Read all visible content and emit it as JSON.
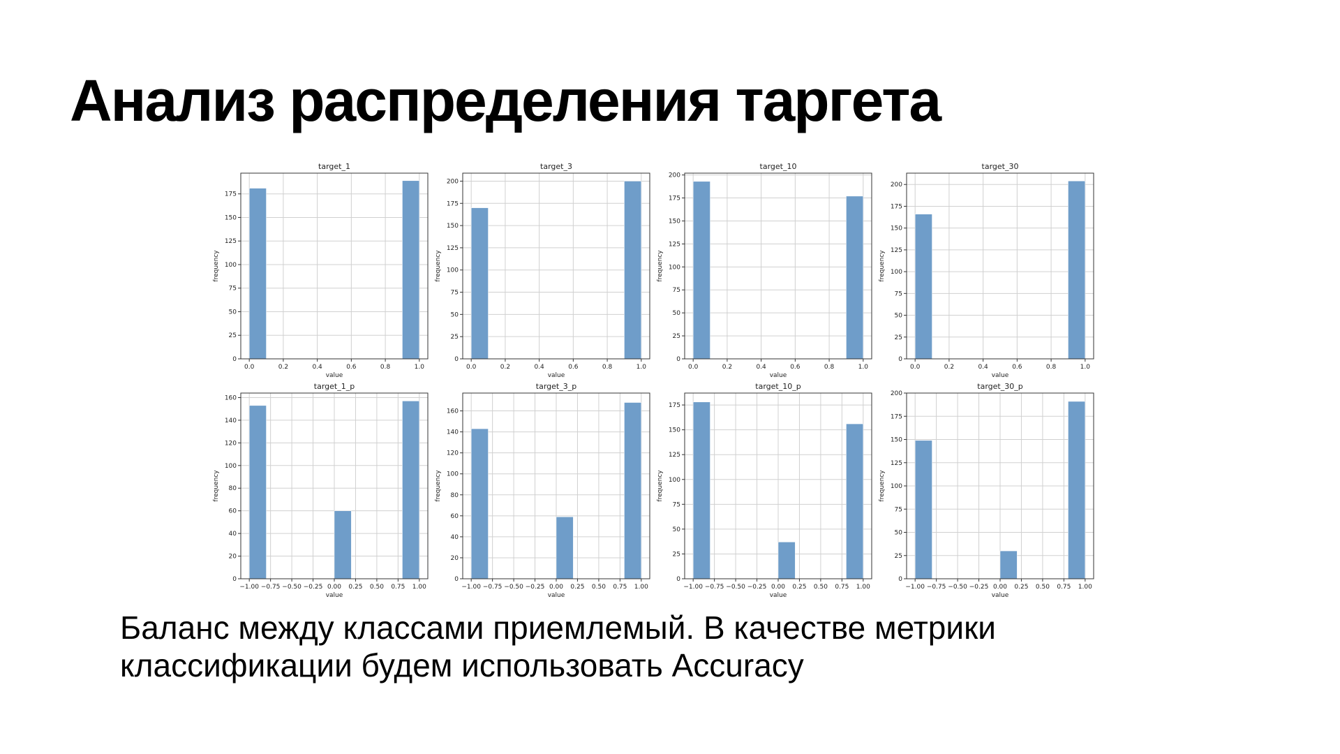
{
  "slide": {
    "title": "Анализ распределения таргета",
    "caption_lines": [
      "Баланс между классами приемлемый. В качестве метрики",
      "классификации будем использовать Accuracy"
    ]
  },
  "colors": {
    "bar": "#6f9dc9",
    "grid": "#d0d0d0",
    "axis": "#333333"
  },
  "chart_data": [
    {
      "type": "bar",
      "title": "target_1",
      "xlabel": "value",
      "ylabel": "frequency",
      "xlim": [
        -0.05,
        1.05
      ],
      "ylim": [
        0,
        197
      ],
      "xticks": [
        0.0,
        0.2,
        0.4,
        0.6,
        0.8,
        1.0
      ],
      "xtick_labels": [
        "0.0",
        "0.2",
        "0.4",
        "0.6",
        "0.8",
        "1.0"
      ],
      "yticks": [
        0,
        25,
        50,
        75,
        100,
        125,
        150,
        175
      ],
      "ytick_labels": [
        "0",
        "25",
        "50",
        "75",
        "100",
        "125",
        "150",
        "175"
      ],
      "bins": [
        {
          "x0": 0.0,
          "x1": 0.1,
          "value": 181
        },
        {
          "x0": 0.9,
          "x1": 1.0,
          "value": 189
        }
      ],
      "grid": true
    },
    {
      "type": "bar",
      "title": "target_3",
      "xlabel": "value",
      "ylabel": "frequency",
      "xlim": [
        -0.05,
        1.05
      ],
      "ylim": [
        0,
        209
      ],
      "xticks": [
        0.0,
        0.2,
        0.4,
        0.6,
        0.8,
        1.0
      ],
      "xtick_labels": [
        "0.0",
        "0.2",
        "0.4",
        "0.6",
        "0.8",
        "1.0"
      ],
      "yticks": [
        0,
        25,
        50,
        75,
        100,
        125,
        150,
        175,
        200
      ],
      "ytick_labels": [
        "0",
        "25",
        "50",
        "75",
        "100",
        "125",
        "150",
        "175",
        "200"
      ],
      "bins": [
        {
          "x0": 0.0,
          "x1": 0.1,
          "value": 170
        },
        {
          "x0": 0.9,
          "x1": 1.0,
          "value": 200
        }
      ],
      "grid": true
    },
    {
      "type": "bar",
      "title": "target_10",
      "xlabel": "value",
      "ylabel": "frequency",
      "xlim": [
        -0.05,
        1.05
      ],
      "ylim": [
        0,
        202
      ],
      "xticks": [
        0.0,
        0.2,
        0.4,
        0.6,
        0.8,
        1.0
      ],
      "xtick_labels": [
        "0.0",
        "0.2",
        "0.4",
        "0.6",
        "0.8",
        "1.0"
      ],
      "yticks": [
        0,
        25,
        50,
        75,
        100,
        125,
        150,
        175,
        200
      ],
      "ytick_labels": [
        "0",
        "25",
        "50",
        "75",
        "100",
        "125",
        "150",
        "175",
        "200"
      ],
      "bins": [
        {
          "x0": 0.0,
          "x1": 0.1,
          "value": 193
        },
        {
          "x0": 0.9,
          "x1": 1.0,
          "value": 177
        }
      ],
      "grid": true
    },
    {
      "type": "bar",
      "title": "target_30",
      "xlabel": "value",
      "ylabel": "frequency",
      "xlim": [
        -0.05,
        1.05
      ],
      "ylim": [
        0,
        213
      ],
      "xticks": [
        0.0,
        0.2,
        0.4,
        0.6,
        0.8,
        1.0
      ],
      "xtick_labels": [
        "0.0",
        "0.2",
        "0.4",
        "0.6",
        "0.8",
        "1.0"
      ],
      "yticks": [
        0,
        25,
        50,
        75,
        100,
        125,
        150,
        175,
        200
      ],
      "ytick_labels": [
        "0",
        "25",
        "50",
        "75",
        "100",
        "125",
        "150",
        "175",
        "200"
      ],
      "bins": [
        {
          "x0": 0.0,
          "x1": 0.1,
          "value": 166
        },
        {
          "x0": 0.9,
          "x1": 1.0,
          "value": 204
        }
      ],
      "grid": true
    },
    {
      "type": "bar",
      "title": "target_1_p",
      "xlabel": "value",
      "ylabel": "frequency",
      "xlim": [
        -1.1,
        1.1
      ],
      "ylim": [
        0,
        164
      ],
      "xticks": [
        -1.0,
        -0.75,
        -0.5,
        -0.25,
        0.0,
        0.25,
        0.5,
        0.75,
        1.0
      ],
      "xtick_labels": [
        "−1.00",
        "−0.75",
        "−0.50",
        "−0.25",
        "0.00",
        "0.25",
        "0.50",
        "0.75",
        "1.00"
      ],
      "yticks": [
        0,
        20,
        40,
        60,
        80,
        100,
        120,
        140,
        160
      ],
      "ytick_labels": [
        "0",
        "20",
        "40",
        "60",
        "80",
        "100",
        "120",
        "140",
        "160"
      ],
      "bins": [
        {
          "x0": -1.0,
          "x1": -0.8,
          "value": 153
        },
        {
          "x0": 0.0,
          "x1": 0.2,
          "value": 60
        },
        {
          "x0": 0.8,
          "x1": 1.0,
          "value": 157
        }
      ],
      "grid": true
    },
    {
      "type": "bar",
      "title": "target_3_p",
      "xlabel": "value",
      "ylabel": "frequency",
      "xlim": [
        -1.1,
        1.1
      ],
      "ylim": [
        0,
        177
      ],
      "xticks": [
        -1.0,
        -0.75,
        -0.5,
        -0.25,
        0.0,
        0.25,
        0.5,
        0.75,
        1.0
      ],
      "xtick_labels": [
        "−1.00",
        "−0.75",
        "−0.50",
        "−0.25",
        "0.00",
        "0.25",
        "0.50",
        "0.75",
        "1.00"
      ],
      "yticks": [
        0,
        20,
        40,
        60,
        80,
        100,
        120,
        140,
        160
      ],
      "ytick_labels": [
        "0",
        "20",
        "40",
        "60",
        "80",
        "100",
        "120",
        "140",
        "160"
      ],
      "bins": [
        {
          "x0": -1.0,
          "x1": -0.8,
          "value": 143
        },
        {
          "x0": 0.0,
          "x1": 0.2,
          "value": 59
        },
        {
          "x0": 0.8,
          "x1": 1.0,
          "value": 168
        }
      ],
      "grid": true
    },
    {
      "type": "bar",
      "title": "target_10_p",
      "xlabel": "value",
      "ylabel": "frequency",
      "xlim": [
        -1.1,
        1.1
      ],
      "ylim": [
        0,
        187
      ],
      "xticks": [
        -1.0,
        -0.75,
        -0.5,
        -0.25,
        0.0,
        0.25,
        0.5,
        0.75,
        1.0
      ],
      "xtick_labels": [
        "−1.00",
        "−0.75",
        "−0.50",
        "−0.25",
        "0.00",
        "0.25",
        "0.50",
        "0.75",
        "1.00"
      ],
      "yticks": [
        0,
        25,
        50,
        75,
        100,
        125,
        150,
        175
      ],
      "ytick_labels": [
        "0",
        "25",
        "50",
        "75",
        "100",
        "125",
        "150",
        "175"
      ],
      "bins": [
        {
          "x0": -1.0,
          "x1": -0.8,
          "value": 178
        },
        {
          "x0": 0.0,
          "x1": 0.2,
          "value": 37
        },
        {
          "x0": 0.8,
          "x1": 1.0,
          "value": 156
        }
      ],
      "grid": true
    },
    {
      "type": "bar",
      "title": "target_30_p",
      "xlabel": "value",
      "ylabel": "frequency",
      "xlim": [
        -1.1,
        1.1
      ],
      "ylim": [
        0,
        200
      ],
      "xticks": [
        -1.0,
        -0.75,
        -0.5,
        -0.25,
        0.0,
        0.25,
        0.5,
        0.75,
        1.0
      ],
      "xtick_labels": [
        "−1.00",
        "−0.75",
        "−0.50",
        "−0.25",
        "0.00",
        "0.25",
        "0.50",
        "0.75",
        "1.00"
      ],
      "yticks": [
        0,
        25,
        50,
        75,
        100,
        125,
        150,
        175,
        200
      ],
      "ytick_labels": [
        "0",
        "25",
        "50",
        "75",
        "100",
        "125",
        "150",
        "175",
        "200"
      ],
      "bins": [
        {
          "x0": -1.0,
          "x1": -0.8,
          "value": 149
        },
        {
          "x0": 0.0,
          "x1": 0.2,
          "value": 30
        },
        {
          "x0": 0.8,
          "x1": 1.0,
          "value": 191
        }
      ],
      "grid": true
    }
  ]
}
